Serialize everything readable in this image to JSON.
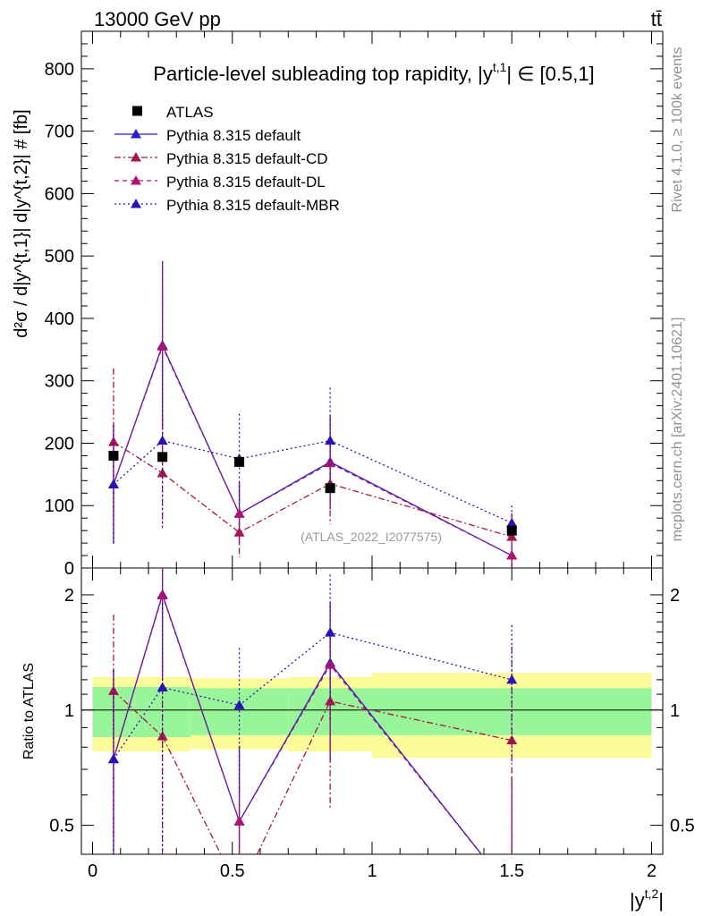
{
  "header": {
    "left": "13000 GeV pp",
    "right": "tt̄"
  },
  "side": {
    "rivet": "Rivet 4.1.0, ≥ 100k events",
    "mcplots": "mcplots.cern.ch [arXiv:2401.10621]"
  },
  "chart_data": {
    "type": "line",
    "title": "Particle-level subleading top rapidity, |y^{t,1}| ∈ [0.5,1]",
    "title_main": "Particle-level subleading top rapidity, |y",
    "title_sup": "t,1",
    "title_tail": "| ∈ [0.5,1]",
    "ylabel": "d²σ / d|y^{t,1}| d|y^{t,2}| # [fb]",
    "ratio_ylabel": "Ratio to ATLAS",
    "xlabel": "|y^{t,2}|",
    "xlabel_main": "|y",
    "xlabel_sup": "t,2",
    "xlabel_tail": "|",
    "watermark": "(ATLAS_2022_I2077575)",
    "xlim": [
      -0.04,
      2.04
    ],
    "ylim": [
      0,
      860
    ],
    "ratio_ylim": [
      0.42,
      2.35
    ],
    "x_ticks": [
      0,
      0.5,
      1,
      1.5,
      2
    ],
    "x_tick_labels": [
      "0",
      "0.5",
      "1",
      "1.5",
      "2"
    ],
    "y_ticks": [
      0,
      100,
      200,
      300,
      400,
      500,
      600,
      700,
      800
    ],
    "y_tick_labels": [
      "0",
      "100",
      "200",
      "300",
      "400",
      "500",
      "600",
      "700",
      "800"
    ],
    "ratio_ticks": [
      0.5,
      1,
      2
    ],
    "ratio_tick_labels": [
      "0.5",
      "1",
      "2"
    ],
    "x": [
      0.075,
      0.25,
      0.525,
      0.85,
      1.5
    ],
    "bins": [
      [
        0,
        0.15
      ],
      [
        0.15,
        0.35
      ],
      [
        0.35,
        0.7
      ],
      [
        0.7,
        1.0
      ],
      [
        1.0,
        2.0
      ]
    ],
    "data": {
      "name": "ATLAS",
      "values": [
        180,
        178,
        170,
        128,
        60
      ],
      "band_stat": [
        0.15,
        0.15,
        0.14,
        0.14,
        0.14
      ],
      "band_tot": [
        0.22,
        0.22,
        0.21,
        0.22,
        0.25
      ]
    },
    "series": [
      {
        "name": "Pythia 8.315 default",
        "color": "#2b1fd1",
        "dash": "",
        "values": [
          134,
          357,
          87,
          170,
          20
        ],
        "err": [
          95,
          135,
          50,
          75,
          20
        ]
      },
      {
        "name": "Pythia 8.315 default-CD",
        "color": "#a8154a",
        "dash": "7,3,2,3",
        "values": [
          202,
          152,
          57,
          135,
          50
        ],
        "err": [
          118,
          88,
          40,
          65,
          38
        ]
      },
      {
        "name": "Pythia 8.315 default-DL",
        "color": "#b0106e",
        "dash": "5,4",
        "values": [
          134,
          355,
          87,
          168,
          20
        ],
        "err": [
          95,
          135,
          50,
          75,
          20
        ]
      },
      {
        "name": "Pythia 8.315 default-MBR",
        "color": "#2a12b8",
        "dash": "2,3",
        "values": [
          134,
          204,
          175,
          204,
          72
        ],
        "err": [
          95,
          135,
          72,
          85,
          28
        ]
      }
    ]
  }
}
